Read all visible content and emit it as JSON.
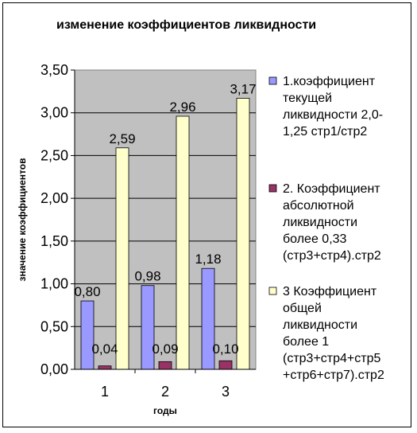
{
  "chart_data": {
    "type": "bar",
    "title": "изменение коэффициентов ликвидности",
    "xlabel": "годы",
    "ylabel": "значение коэффициентов",
    "categories": [
      "1",
      "2",
      "3"
    ],
    "ylim": [
      0,
      3.5
    ],
    "yticks": [
      "0,00",
      "0,50",
      "1,00",
      "1,50",
      "2,00",
      "2,50",
      "3,00",
      "3,50"
    ],
    "grid": true,
    "legend_position": "right",
    "series": [
      {
        "name_lines": [
          "1.коэффициент",
          "текущей",
          "ликвидности 2,0-",
          "1,25 стр1/стр2"
        ],
        "values": [
          0.8,
          0.98,
          1.18
        ],
        "labels": [
          "0,80",
          "0,98",
          "1,18"
        ],
        "color": "#9999FF"
      },
      {
        "name_lines": [
          "2. Коэффициент",
          "абсолютной",
          "ликвидности",
          "более 0,33",
          "(стр3+стр4).стр2"
        ],
        "values": [
          0.04,
          0.09,
          0.1
        ],
        "labels": [
          "0,04",
          "0,09",
          "0,10"
        ],
        "color": "#993366"
      },
      {
        "name_lines": [
          "3   Коэффициент",
          "общей",
          "ликвидности",
          "более 1",
          "(стр3+стр4+стр5",
          "+стр6+стр7).стр2"
        ],
        "values": [
          2.59,
          2.96,
          3.17
        ],
        "labels": [
          "2,59",
          "2,96",
          "3,17"
        ],
        "color": "#FFFFCC"
      }
    ]
  }
}
